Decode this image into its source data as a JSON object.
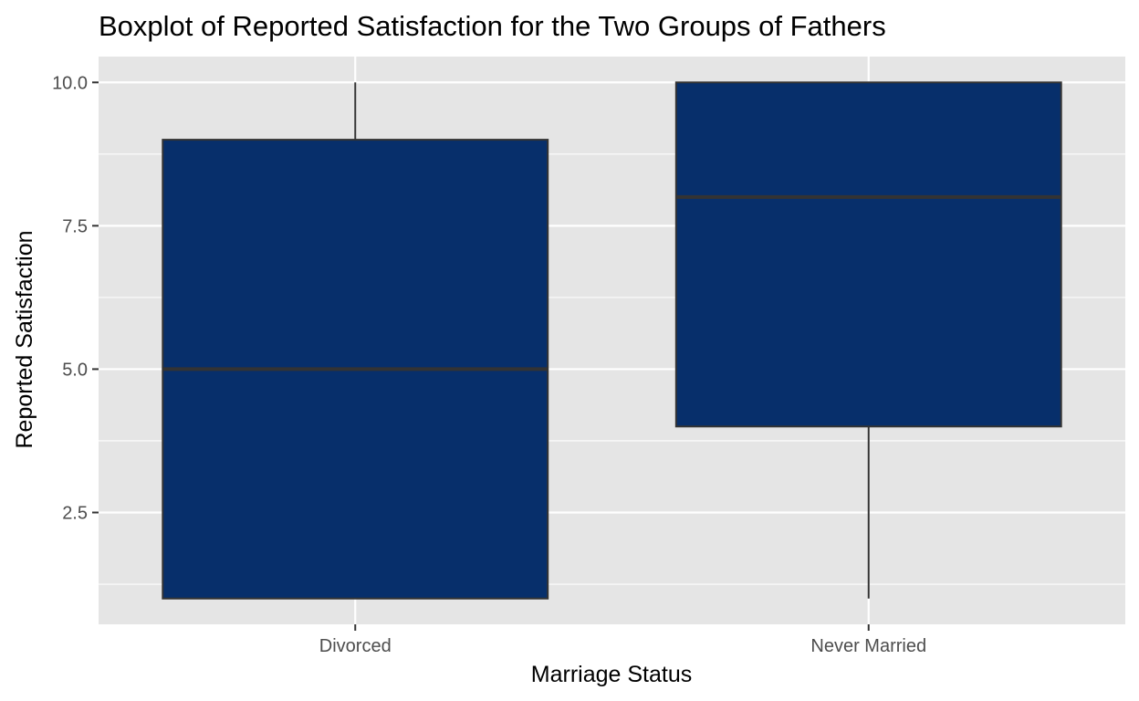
{
  "chart_data": {
    "type": "boxplot",
    "title": "Boxplot of Reported Satisfaction for the Two Groups of Fathers",
    "xlabel": "Marriage Status",
    "ylabel": "Reported Satisfaction",
    "categories": [
      "Divorced",
      "Never Married"
    ],
    "boxes": [
      {
        "category": "Divorced",
        "min": 1.0,
        "q1": 1.0,
        "median": 5.0,
        "q3": 9.0,
        "max": 10.0
      },
      {
        "category": "Never Married",
        "min": 1.0,
        "q1": 4.0,
        "median": 8.0,
        "q3": 10.0,
        "max": 10.0
      }
    ],
    "yticks": [
      "2.5",
      "5.0",
      "7.5",
      "10.0"
    ],
    "ylim": [
      0.55,
      10.45
    ],
    "grid": true,
    "legend": "none",
    "colors": {
      "box_fill": "#072f6b",
      "box_stroke": "#333333",
      "panel": "#e5e5e5",
      "grid": "#ffffff"
    }
  }
}
